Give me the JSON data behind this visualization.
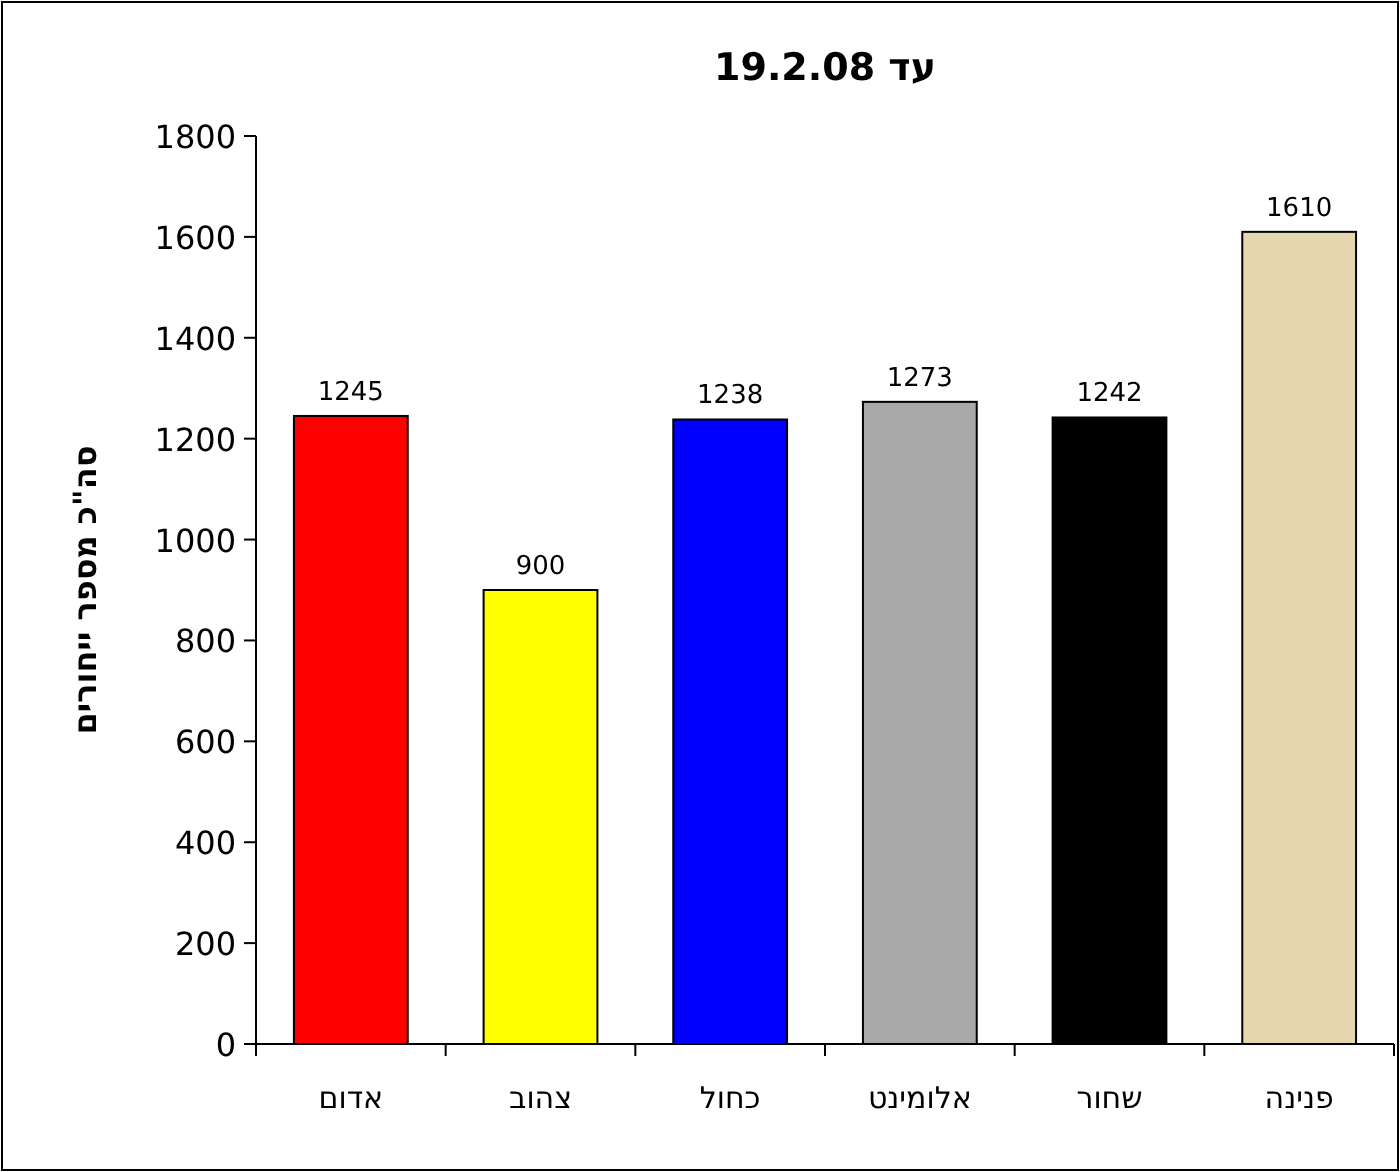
{
  "chart_data": {
    "type": "bar",
    "title": "עד 19.2.08",
    "ylabel": "סה\"כ מספר ייחורים",
    "categories": [
      "אדום",
      "צהוב",
      "כחול",
      "אלומינט",
      "שחור",
      "פנינה"
    ],
    "values": [
      1245,
      900,
      1238,
      1273,
      1242,
      1610
    ],
    "colors": [
      "#ff0000",
      "#ffff00",
      "#0000ff",
      "#a8a8a8",
      "#000000",
      "#e6d6b0"
    ],
    "data_labels": true,
    "ylim": [
      0,
      1800
    ],
    "yticks": [
      0,
      200,
      400,
      600,
      800,
      1000,
      1200,
      1400,
      1600,
      1800
    ],
    "grid": false
  }
}
